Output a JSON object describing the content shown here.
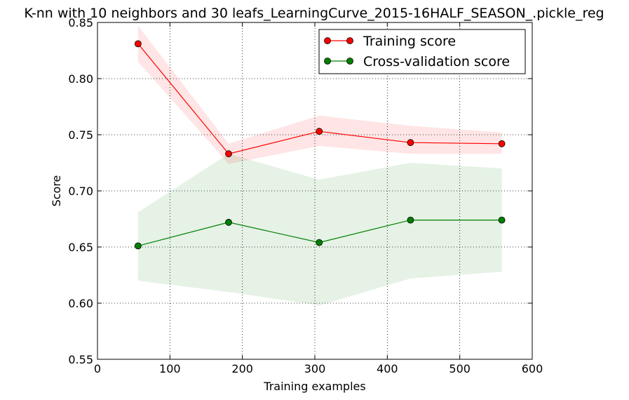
{
  "chart_data": {
    "type": "line",
    "title": "K-nn with 10 neighbors and 30 leafs_LearningCurve_2015-16HALF_SEASON_.pickle_reg",
    "xlabel": "Training examples",
    "ylabel": "Score",
    "xlim": [
      0,
      600
    ],
    "ylim": [
      0.55,
      0.85
    ],
    "xticks": [
      0,
      100,
      200,
      300,
      400,
      500,
      600
    ],
    "yticks": [
      0.55,
      0.6,
      0.65,
      0.7,
      0.75,
      0.8,
      0.85
    ],
    "xtick_labels": [
      "0",
      "100",
      "200",
      "300",
      "400",
      "500",
      "600"
    ],
    "ytick_labels": [
      "0.55",
      "0.60",
      "0.65",
      "0.70",
      "0.75",
      "0.80",
      "0.85"
    ],
    "grid": true,
    "legend_position": "top-right",
    "x": [
      56,
      181,
      306,
      432,
      558
    ],
    "series": [
      {
        "name": "Training score",
        "color": "#ff0000",
        "band_color": "#ff0000",
        "values": [
          0.831,
          0.733,
          0.753,
          0.743,
          0.742
        ],
        "lower": [
          0.815,
          0.724,
          0.74,
          0.733,
          0.733
        ],
        "upper": [
          0.847,
          0.742,
          0.767,
          0.758,
          0.752
        ]
      },
      {
        "name": "Cross-validation score",
        "color": "#008000",
        "band_color": "#008000",
        "values": [
          0.651,
          0.672,
          0.654,
          0.674,
          0.674
        ],
        "lower": [
          0.62,
          0.61,
          0.598,
          0.622,
          0.628
        ],
        "upper": [
          0.681,
          0.733,
          0.71,
          0.725,
          0.72
        ]
      }
    ]
  }
}
